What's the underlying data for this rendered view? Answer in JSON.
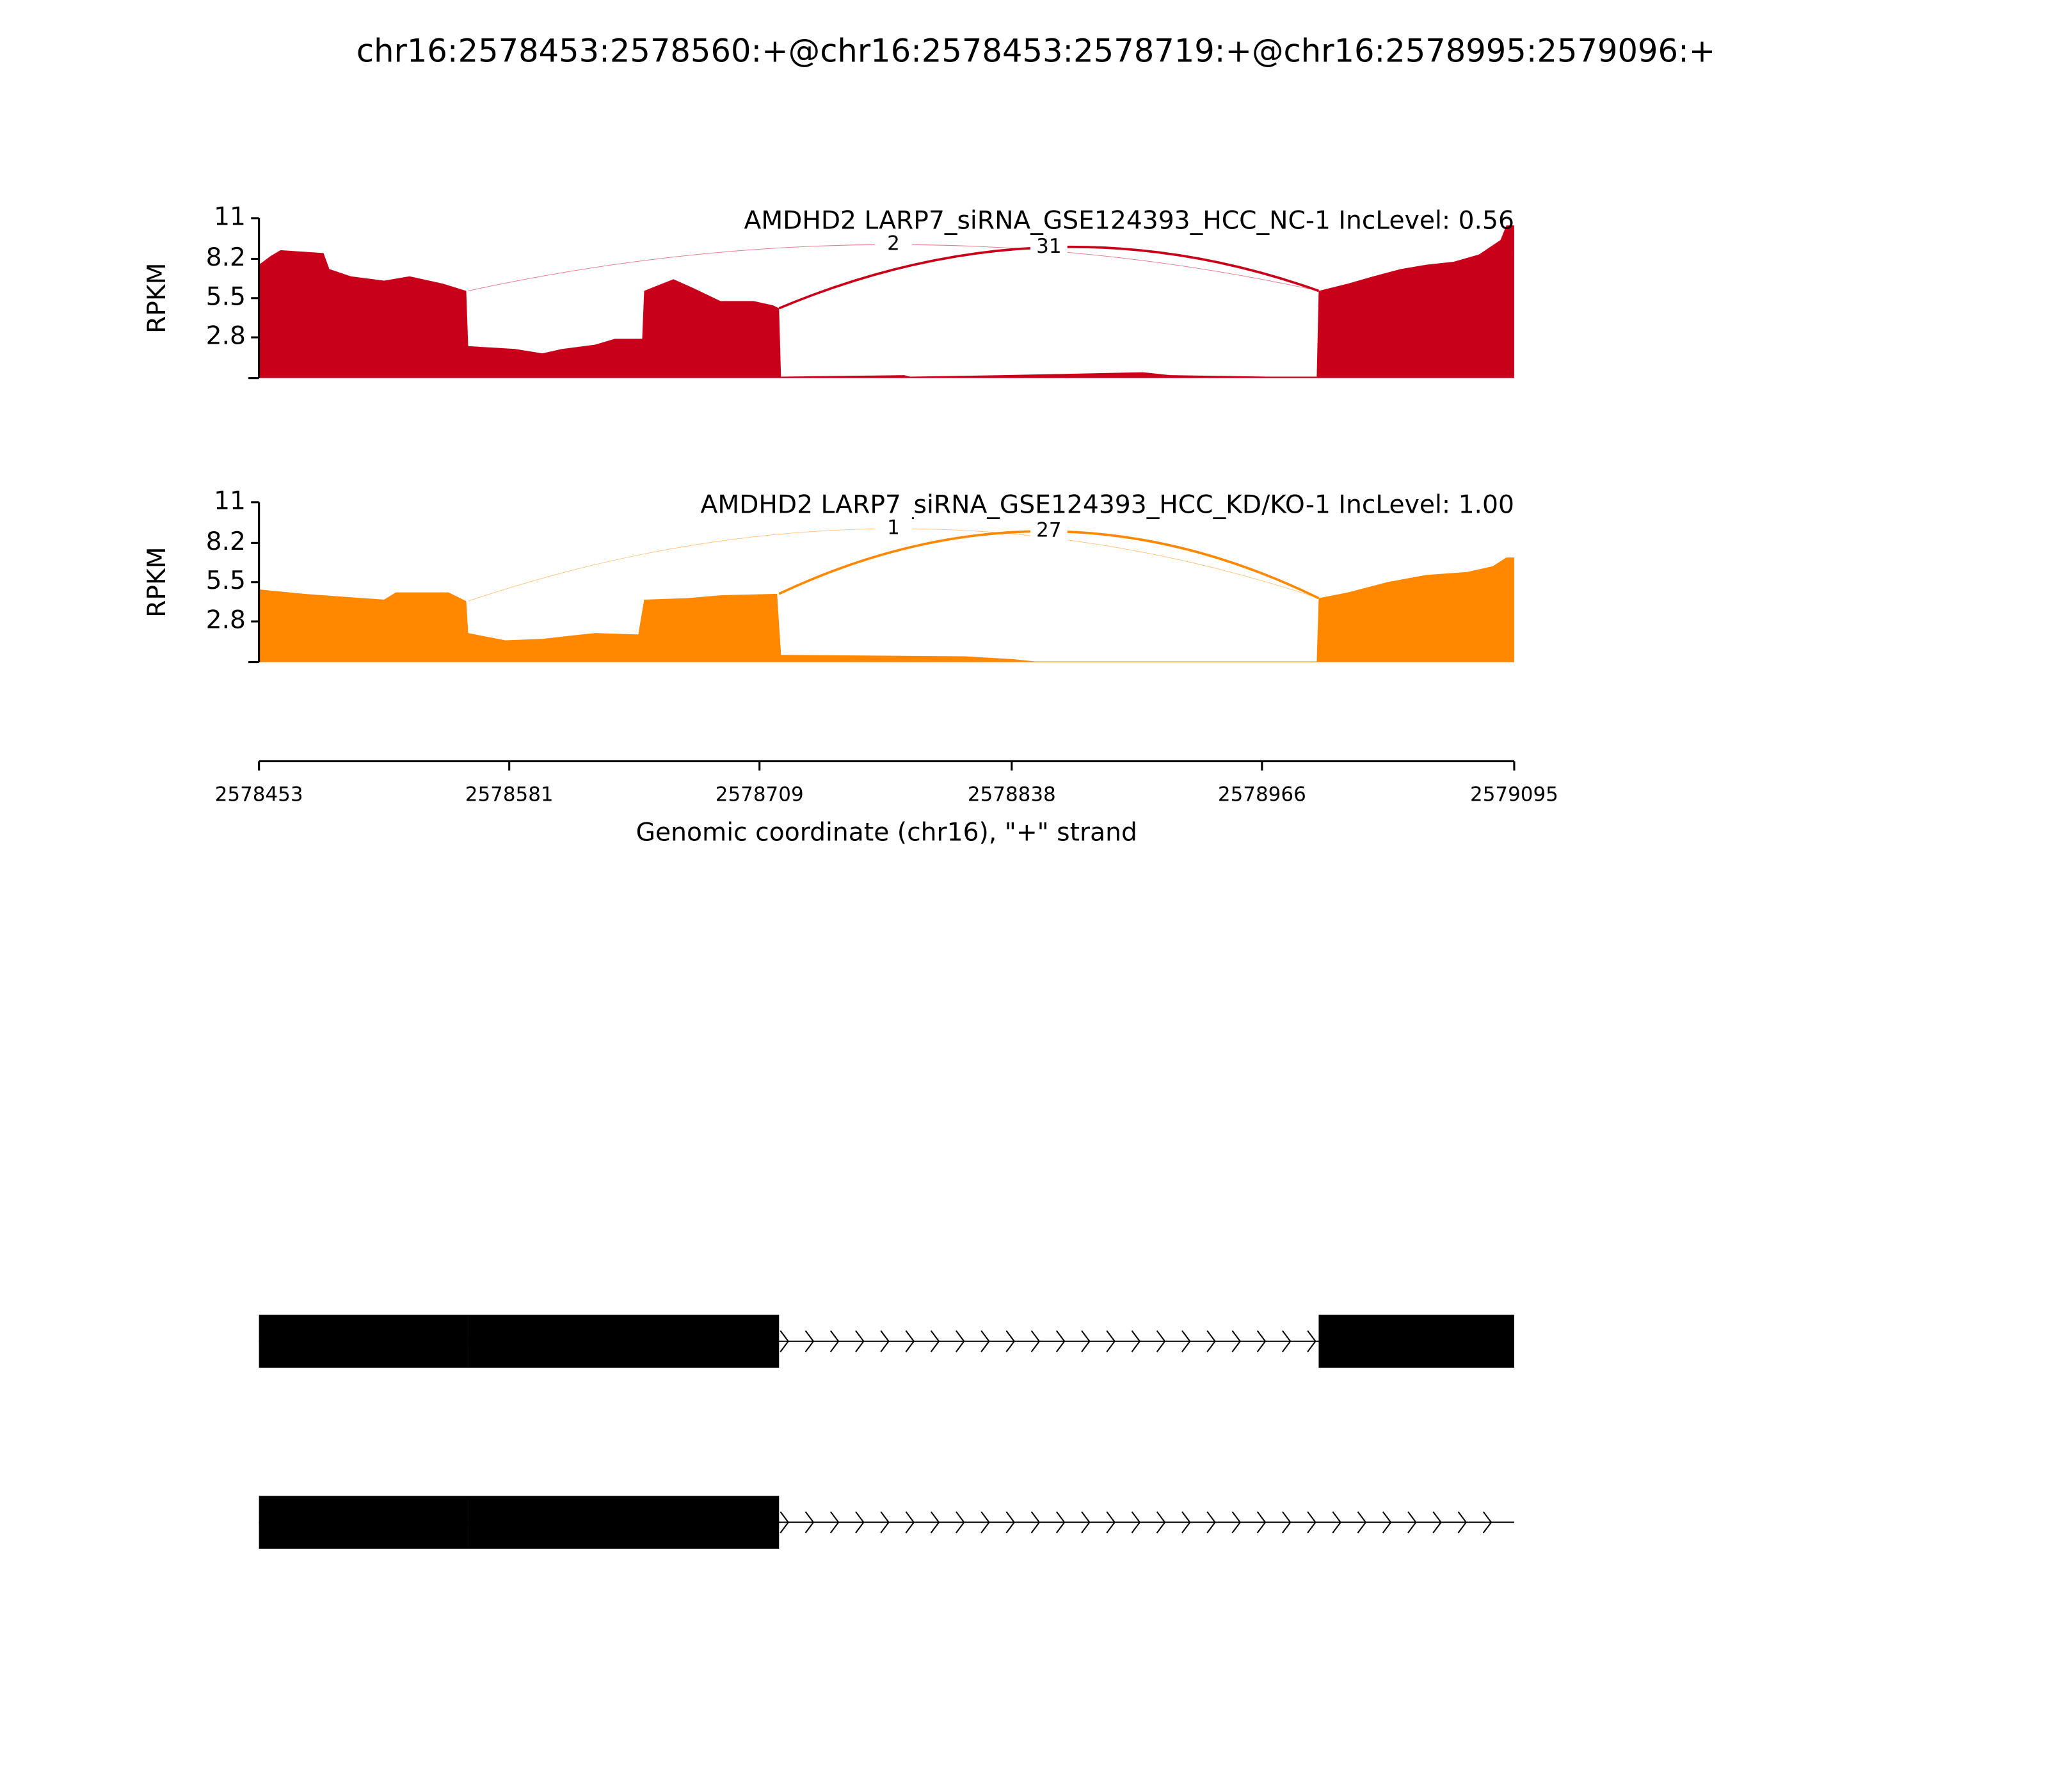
{
  "title": "chr16:2578453:2578560:+@chr16:2578453:2578719:+@chr16:2578995:2579096:+",
  "chart_data": [
    {
      "type": "area",
      "title": "AMDHD2 LARP7_siRNA_GSE124393_HCC_NC-1 IncLevel: 0.56",
      "ylabel": "RPKM",
      "color": "#c9001a",
      "ylim": [
        0,
        11
      ],
      "yticks": [
        2.8,
        5.5,
        8.2,
        11
      ],
      "x": [
        2578453,
        2578459,
        2578464,
        2578486,
        2578489,
        2578500,
        2578517,
        2578530,
        2578547,
        2578559,
        2578560,
        2578584,
        2578598,
        2578608,
        2578625,
        2578635,
        2578649,
        2578650,
        2578665,
        2578675,
        2578689,
        2578706,
        2578716,
        2578719,
        2578720,
        2578783,
        2578786,
        2578834,
        2578905,
        2578919,
        2578969,
        2578994,
        2578995,
        2579010,
        2579023,
        2579037,
        2579050,
        2579064,
        2579077,
        2579088,
        2579091,
        2579095
      ],
      "values": [
        7.8,
        8.4,
        8.8,
        8.6,
        7.5,
        7.0,
        6.7,
        7.0,
        6.5,
        6.0,
        2.2,
        2.0,
        1.7,
        2.0,
        2.3,
        2.7,
        2.7,
        6.0,
        6.8,
        6.2,
        5.3,
        5.3,
        5.0,
        4.8,
        0.1,
        0.2,
        0.1,
        0.2,
        0.4,
        0.2,
        0.1,
        0.1,
        6.0,
        6.5,
        7.0,
        7.5,
        7.8,
        8.0,
        8.5,
        9.5,
        10.5,
        10.5
      ],
      "junctions": [
        {
          "start": 2578560,
          "end": 2578995,
          "count": 2
        },
        {
          "start": 2578719,
          "end": 2578995,
          "count": 31
        }
      ]
    },
    {
      "type": "area",
      "title": "AMDHD2 LARP7_siRNA_GSE124393_HCC_KD/KO-1 IncLevel: 1.00",
      "ylabel": "RPKM",
      "color": "#ff8800",
      "ylim": [
        0,
        11
      ],
      "yticks": [
        2.8,
        5.5,
        8.2,
        11
      ],
      "x": [
        2578453,
        2578476,
        2578496,
        2578517,
        2578523,
        2578550,
        2578559,
        2578560,
        2578579,
        2578598,
        2578611,
        2578625,
        2578647,
        2578650,
        2578672,
        2578689,
        2578718,
        2578720,
        2578814,
        2578839,
        2578850,
        2578994,
        2578995,
        2579010,
        2579030,
        2579050,
        2579071,
        2579084,
        2579091,
        2579095
      ],
      "values": [
        5.0,
        4.7,
        4.5,
        4.3,
        4.8,
        4.8,
        4.2,
        2.0,
        1.5,
        1.6,
        1.8,
        2.0,
        1.9,
        4.3,
        4.4,
        4.6,
        4.7,
        0.5,
        0.4,
        0.2,
        0.05,
        0.05,
        4.4,
        4.8,
        5.5,
        6.0,
        6.2,
        6.6,
        7.2,
        7.2
      ],
      "junctions": [
        {
          "start": 2578560,
          "end": 2578995,
          "count": 1
        },
        {
          "start": 2578719,
          "end": 2578995,
          "count": 27
        }
      ]
    }
  ],
  "x_axis": {
    "xlabel": "Genomic coordinate (chr16), \"+\" strand",
    "xlim": [
      2578453,
      2579095
    ],
    "xticks": [
      2578453,
      2578581,
      2578709,
      2578838,
      2578966,
      2579095
    ]
  },
  "gene_model": [
    {
      "span": [
        2578453,
        2579095
      ],
      "exons": [
        [
          2578453,
          2578560
        ],
        [
          2578560,
          2578719
        ],
        [
          2578995,
          2579095
        ]
      ]
    },
    {
      "span": [
        2578453,
        2579095
      ],
      "exons": [
        [
          2578453,
          2578560
        ],
        [
          2578560,
          2578719
        ]
      ]
    }
  ]
}
